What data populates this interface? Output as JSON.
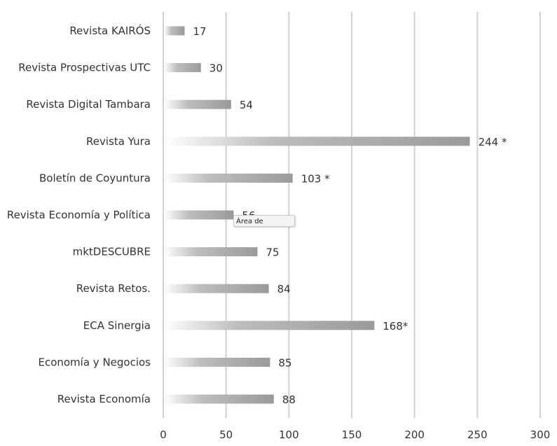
{
  "chart_data": {
    "type": "bar",
    "orientation": "horizontal",
    "categories": [
      "Revista KAIRÓS",
      "Revista Prospectivas UTC",
      "Revista Digital Tambara",
      "Revista Yura",
      "Boletín de Coyuntura",
      "Revista Economía y Política",
      "mktDESCUBRE",
      "Revista Retos.",
      "ECA Sinergia",
      "Economía y Negocios",
      "Revista Economía"
    ],
    "values": [
      17,
      30,
      54,
      244,
      103,
      56,
      75,
      84,
      168,
      85,
      88
    ],
    "data_labels": [
      "17",
      "30",
      "54",
      "244 *",
      "103 *",
      "56",
      "75",
      "84",
      "168*",
      "85",
      "88"
    ],
    "xlim": [
      0,
      300
    ],
    "x_ticks": [
      "0",
      "50",
      "100",
      "150",
      "200",
      "250",
      "300"
    ],
    "grid": "vertical",
    "bar_color": "#999999"
  },
  "tooltip": {
    "text": "Área de"
  }
}
